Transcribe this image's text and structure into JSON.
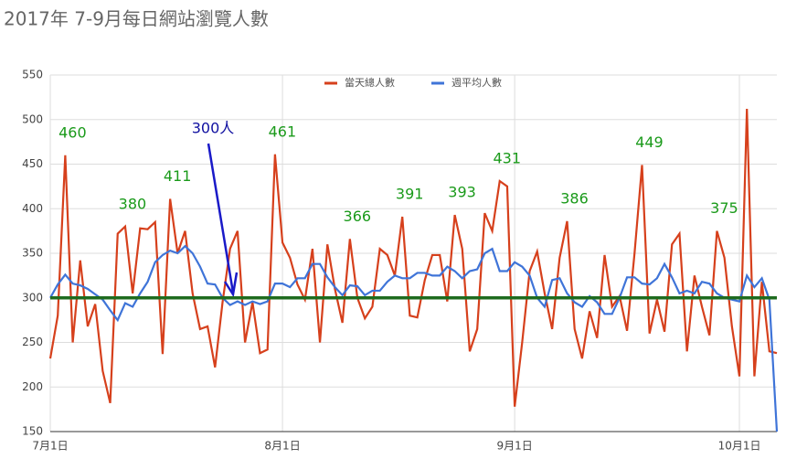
{
  "chart_data": {
    "type": "line",
    "title": "2017年 7-9月每日網站瀏覽人數",
    "legend": "top",
    "grid": true,
    "ylim": [
      150,
      550
    ],
    "yticks": [
      150,
      200,
      250,
      300,
      350,
      400,
      450,
      500,
      550
    ],
    "categories": [
      "7月1日",
      null,
      null,
      null,
      null,
      null,
      null,
      null,
      null,
      null,
      null,
      null,
      null,
      null,
      null,
      null,
      null,
      null,
      null,
      null,
      null,
      null,
      null,
      null,
      null,
      null,
      null,
      null,
      null,
      null,
      null,
      "8月1日",
      null,
      null,
      null,
      null,
      null,
      null,
      null,
      null,
      null,
      null,
      null,
      null,
      null,
      null,
      null,
      null,
      null,
      null,
      null,
      null,
      null,
      null,
      null,
      null,
      null,
      null,
      null,
      null,
      null,
      null,
      "9月1日",
      null,
      null,
      null,
      null,
      null,
      null,
      null,
      null,
      null,
      null,
      null,
      null,
      null,
      null,
      null,
      null,
      null,
      null,
      null,
      null,
      null,
      null,
      null,
      null,
      null,
      null,
      null,
      null,
      null,
      "10月1日",
      null,
      null,
      null,
      null,
      null
    ],
    "series": [
      {
        "name": "當天總人數",
        "color": "#d6401c",
        "values": [
          232,
          280,
          460,
          250,
          342,
          268,
          293,
          218,
          182,
          372,
          380,
          305,
          378,
          377,
          385,
          237,
          411,
          350,
          375,
          305,
          265,
          268,
          222,
          295,
          355,
          375,
          250,
          295,
          238,
          242,
          461,
          362,
          345,
          315,
          298,
          355,
          250,
          360,
          310,
          272,
          366,
          300,
          277,
          290,
          355,
          348,
          325,
          391,
          280,
          278,
          320,
          348,
          348,
          296,
          393,
          355,
          240,
          265,
          395,
          375,
          431,
          425,
          178,
          250,
          330,
          352,
          305,
          265,
          345,
          386,
          265,
          232,
          285,
          255,
          348,
          290,
          302,
          263,
          350,
          449,
          260,
          298,
          262,
          360,
          372,
          240,
          325,
          290,
          258,
          375,
          345,
          268,
          212,
          512,
          212,
          318,
          240,
          238
        ],
        "value_labels": [
          null,
          null,
          "460",
          null,
          null,
          null,
          null,
          null,
          null,
          null,
          "380",
          null,
          null,
          null,
          null,
          null,
          "411",
          null,
          null,
          null,
          null,
          null,
          null,
          null,
          null,
          null,
          null,
          null,
          null,
          null,
          "461",
          null,
          null,
          null,
          null,
          null,
          null,
          null,
          null,
          null,
          "366",
          null,
          null,
          null,
          null,
          null,
          null,
          "391",
          null,
          null,
          null,
          null,
          null,
          null,
          "393",
          null,
          null,
          null,
          null,
          null,
          "431",
          null,
          null,
          null,
          null,
          null,
          null,
          null,
          null,
          "386",
          null,
          null,
          null,
          null,
          null,
          null,
          null,
          null,
          null,
          "449",
          null,
          null,
          null,
          null,
          null,
          null,
          null,
          null,
          null,
          "375",
          null,
          null,
          null,
          null,
          null,
          null,
          null,
          null
        ]
      },
      {
        "name": "週平均人數",
        "color": "#3f74d8",
        "values": [
          300,
          315,
          326,
          316,
          314,
          310,
          304,
          298,
          286,
          275,
          294,
          290,
          305,
          318,
          340,
          348,
          353,
          350,
          358,
          350,
          335,
          316,
          315,
          300,
          292,
          296,
          292,
          296,
          293,
          296,
          316,
          316,
          312,
          322,
          322,
          338,
          338,
          323,
          312,
          303,
          314,
          313,
          303,
          308,
          308,
          318,
          325,
          322,
          322,
          328,
          328,
          325,
          325,
          335,
          330,
          322,
          330,
          332,
          350,
          355,
          330,
          330,
          340,
          335,
          325,
          300,
          290,
          320,
          322,
          305,
          295,
          290,
          302,
          295,
          282,
          282,
          300,
          323,
          323,
          316,
          315,
          322,
          338,
          323,
          305,
          308,
          305,
          318,
          316,
          305,
          300,
          298,
          296,
          325,
          312,
          322,
          298,
          150
        ]
      }
    ],
    "reference_line": {
      "value": 300,
      "label": "300人",
      "color": "#1e6b1e"
    }
  }
}
